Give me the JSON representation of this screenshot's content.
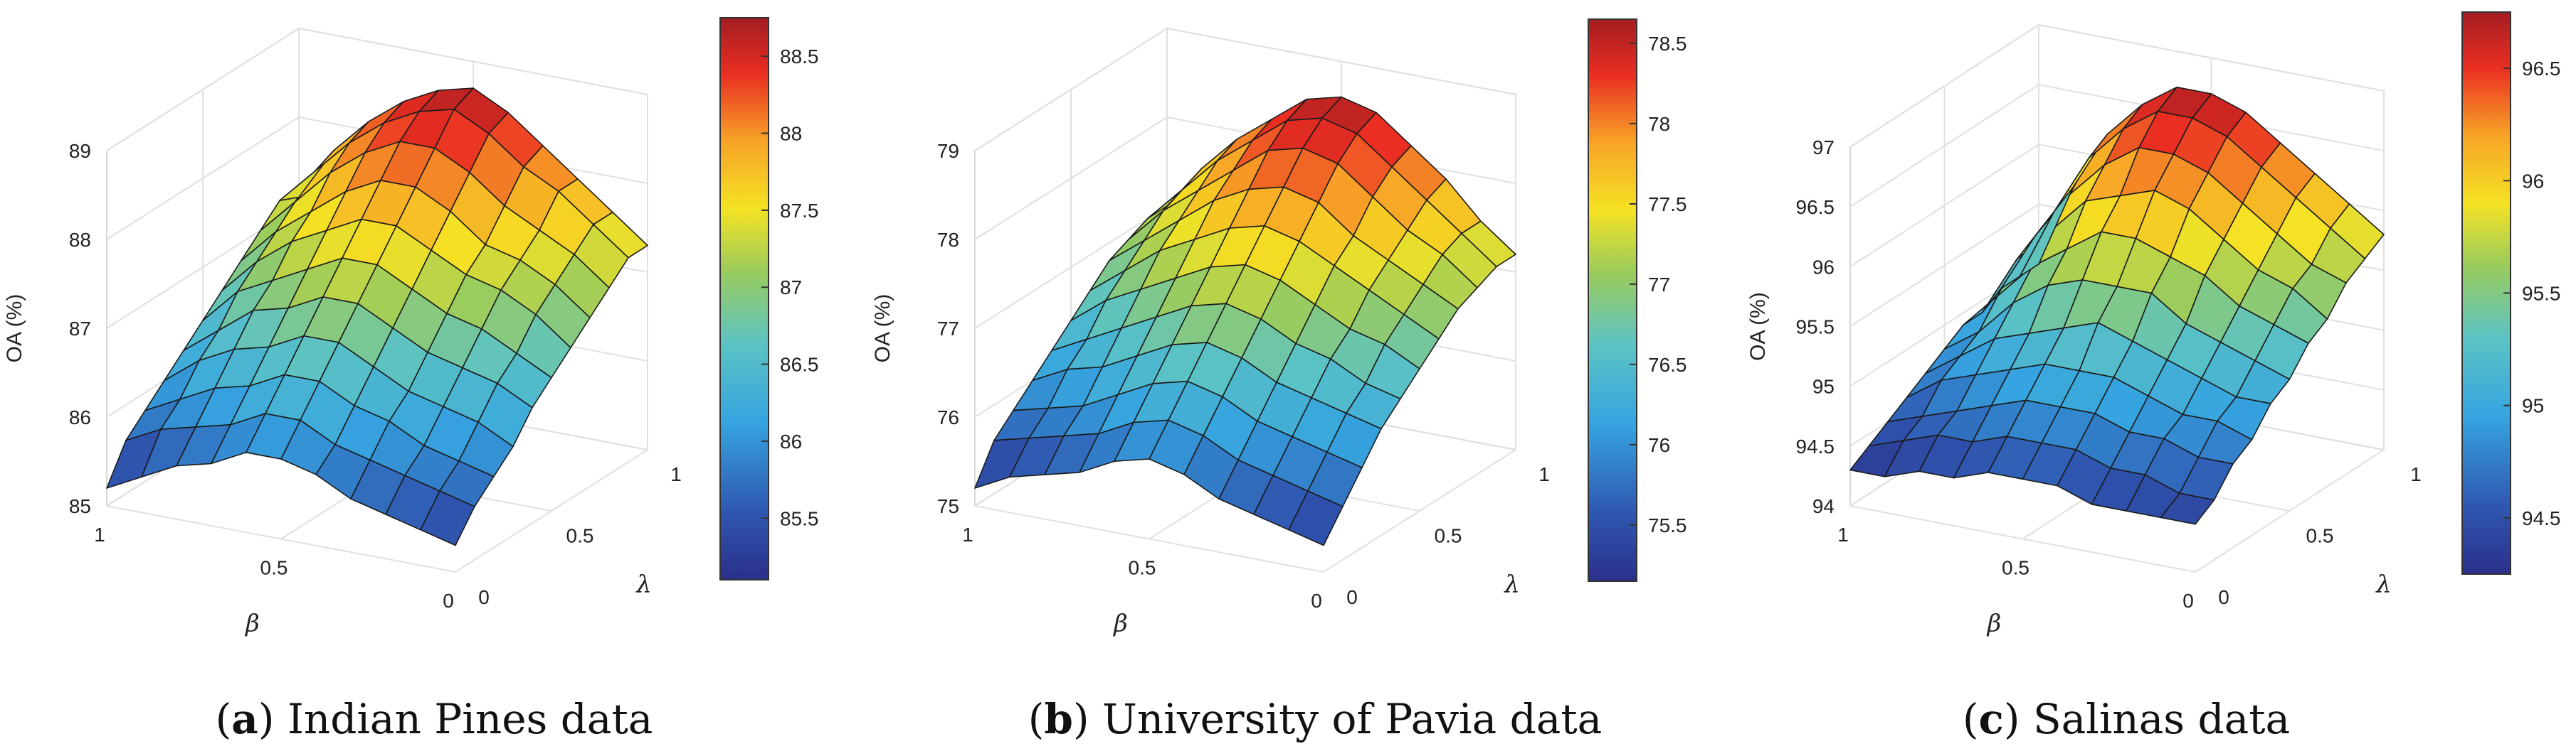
{
  "chart_data": [
    {
      "type": "surface3d",
      "title": "",
      "caption_letter": "a",
      "caption_text": "Indian Pines data",
      "zlabel": "OA (%)",
      "xlabel": "β",
      "ylabel": "λ",
      "x_ticks": [
        "1",
        "0.5",
        "0"
      ],
      "y_ticks": [
        "0",
        "0.5",
        "1"
      ],
      "z_ticks": [
        "85",
        "86",
        "87",
        "88",
        "89"
      ],
      "zlim": [
        85,
        89
      ],
      "colorbar_ticks": [
        "85.5",
        "86",
        "86.5",
        "87",
        "87.5",
        "88",
        "88.5"
      ],
      "colorbar_range": [
        85.1,
        88.75
      ],
      "grid_shape": [
        11,
        11
      ],
      "z_grid": [
        [
          87.1,
          87.7,
          88.1,
          88.4,
          88.6,
          88.7,
          88.5,
          88.2,
          87.9,
          87.6,
          87.3
        ],
        [
          87.2,
          87.6,
          88.0,
          88.3,
          88.5,
          88.6,
          88.4,
          88.1,
          87.9,
          87.6,
          87.3
        ],
        [
          87.0,
          87.4,
          87.8,
          88.1,
          88.3,
          88.3,
          88.1,
          87.8,
          87.6,
          87.4,
          87.1
        ],
        [
          86.8,
          87.2,
          87.5,
          87.8,
          88.0,
          88.0,
          87.8,
          87.5,
          87.4,
          87.2,
          86.9
        ],
        [
          86.6,
          87.0,
          87.3,
          87.5,
          87.7,
          87.7,
          87.5,
          87.3,
          87.2,
          87.0,
          86.7
        ],
        [
          86.4,
          86.8,
          87.0,
          87.2,
          87.4,
          87.4,
          87.2,
          87.0,
          86.9,
          86.7,
          86.5
        ],
        [
          86.2,
          86.5,
          86.8,
          86.9,
          87.1,
          87.1,
          86.9,
          86.7,
          86.6,
          86.5,
          86.3
        ],
        [
          86.0,
          86.3,
          86.5,
          86.6,
          86.8,
          86.8,
          86.6,
          86.4,
          86.3,
          86.2,
          86.0
        ],
        [
          85.8,
          86.0,
          86.2,
          86.3,
          86.5,
          86.5,
          86.3,
          86.2,
          86.0,
          85.9,
          85.8
        ],
        [
          85.6,
          85.8,
          85.9,
          86.0,
          86.2,
          86.2,
          86.0,
          85.9,
          85.8,
          85.7,
          85.6
        ],
        [
          85.2,
          85.4,
          85.6,
          85.7,
          85.9,
          85.9,
          85.8,
          85.6,
          85.5,
          85.4,
          85.3
        ]
      ]
    },
    {
      "type": "surface3d",
      "title": "",
      "caption_letter": "b",
      "caption_text": "University of Pavia data",
      "zlabel": "OA (%)",
      "xlabel": "β",
      "ylabel": "λ",
      "x_ticks": [
        "1",
        "0.5",
        "0"
      ],
      "y_ticks": [
        "0",
        "0.5",
        "1"
      ],
      "z_ticks": [
        "75",
        "76",
        "77",
        "78",
        "79"
      ],
      "zlim": [
        75,
        79
      ],
      "colorbar_ticks": [
        "75.5",
        "76",
        "76.5",
        "77",
        "77.5",
        "78",
        "78.5"
      ],
      "colorbar_range": [
        75.15,
        78.65
      ],
      "grid_shape": [
        11,
        11
      ],
      "z_grid": [
        [
          77.0,
          77.5,
          77.9,
          78.2,
          78.5,
          78.6,
          78.5,
          78.2,
          77.9,
          77.5,
          77.2
        ],
        [
          77.0,
          77.4,
          77.8,
          78.1,
          78.4,
          78.5,
          78.4,
          78.1,
          77.8,
          77.5,
          77.2
        ],
        [
          76.9,
          77.3,
          77.6,
          77.9,
          78.2,
          78.3,
          78.2,
          77.9,
          77.6,
          77.4,
          77.1
        ],
        [
          76.8,
          77.1,
          77.4,
          77.7,
          77.9,
          78.0,
          77.9,
          77.6,
          77.4,
          77.2,
          77.0
        ],
        [
          76.6,
          76.9,
          77.2,
          77.4,
          77.6,
          77.7,
          77.6,
          77.4,
          77.2,
          77.0,
          76.8
        ],
        [
          76.4,
          76.7,
          76.9,
          77.1,
          77.3,
          77.4,
          77.3,
          77.1,
          76.9,
          76.8,
          76.6
        ],
        [
          76.2,
          76.4,
          76.6,
          76.8,
          77.0,
          77.1,
          77.0,
          76.8,
          76.7,
          76.5,
          76.4
        ],
        [
          76.0,
          76.2,
          76.3,
          76.5,
          76.7,
          76.8,
          76.7,
          76.5,
          76.4,
          76.3,
          76.2
        ],
        [
          75.8,
          75.9,
          76.0,
          76.2,
          76.4,
          76.5,
          76.4,
          76.2,
          76.1,
          76.0,
          75.9
        ],
        [
          75.6,
          75.7,
          75.8,
          75.9,
          76.1,
          76.2,
          76.1,
          75.9,
          75.8,
          75.7,
          75.6
        ],
        [
          75.2,
          75.4,
          75.5,
          75.6,
          75.8,
          75.9,
          75.8,
          75.6,
          75.5,
          75.4,
          75.3
        ]
      ]
    },
    {
      "type": "surface3d",
      "title": "",
      "caption_letter": "c",
      "caption_text": "Salinas data",
      "zlabel": "OA (%)",
      "xlabel": "β",
      "ylabel": "λ",
      "x_ticks": [
        "1",
        "0.5",
        "0"
      ],
      "y_ticks": [
        "0",
        "0.5",
        "1"
      ],
      "z_ticks": [
        "94",
        "94.5",
        "95",
        "95.5",
        "96",
        "96.5",
        "97"
      ],
      "zlim": [
        94,
        97
      ],
      "colorbar_ticks": [
        "94.5",
        "95",
        "95.5",
        "96",
        "96.5"
      ],
      "colorbar_range": [
        94.25,
        96.75
      ],
      "grid_shape": [
        11,
        11
      ],
      "z_grid": [
        [
          95.0,
          95.7,
          96.2,
          96.5,
          96.7,
          96.7,
          96.6,
          96.4,
          96.2,
          96.0,
          95.8
        ],
        [
          95.0,
          95.6,
          96.1,
          96.4,
          96.6,
          96.6,
          96.5,
          96.3,
          96.1,
          95.9,
          95.7
        ],
        [
          95.0,
          95.5,
          95.9,
          96.2,
          96.4,
          96.4,
          96.3,
          96.1,
          95.9,
          95.7,
          95.6
        ],
        [
          94.9,
          95.4,
          95.7,
          96.0,
          96.1,
          96.2,
          96.1,
          95.9,
          95.7,
          95.6,
          95.4
        ],
        [
          94.9,
          95.2,
          95.5,
          95.7,
          95.9,
          95.9,
          95.8,
          95.7,
          95.5,
          95.4,
          95.3
        ],
        [
          94.8,
          95.0,
          95.3,
          95.5,
          95.6,
          95.6,
          95.6,
          95.4,
          95.3,
          95.2,
          95.1
        ],
        [
          94.7,
          94.9,
          95.1,
          95.2,
          95.3,
          95.4,
          95.3,
          95.2,
          95.1,
          95.0,
          95.0
        ],
        [
          94.6,
          94.8,
          94.9,
          95.0,
          95.1,
          95.1,
          95.1,
          95.0,
          94.9,
          94.9,
          94.8
        ],
        [
          94.5,
          94.6,
          94.7,
          94.8,
          94.9,
          94.9,
          94.9,
          94.8,
          94.8,
          94.7,
          94.7
        ],
        [
          94.4,
          94.5,
          94.6,
          94.6,
          94.7,
          94.7,
          94.7,
          94.6,
          94.6,
          94.5,
          94.5
        ],
        [
          94.3,
          94.3,
          94.4,
          94.4,
          94.5,
          94.5,
          94.5,
          94.4,
          94.4,
          94.4,
          94.4
        ]
      ]
    }
  ]
}
